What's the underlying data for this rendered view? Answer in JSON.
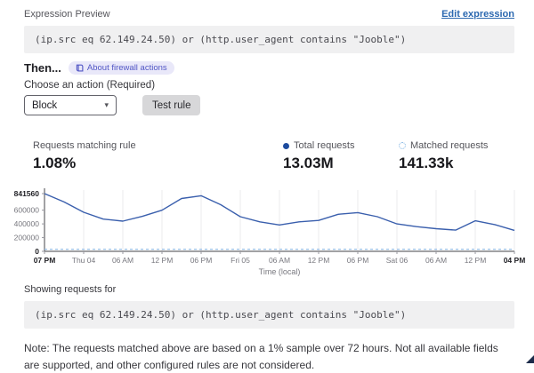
{
  "header": {
    "title": "Expression Preview",
    "edit_link": "Edit expression"
  },
  "expression": "(ip.src eq 62.149.24.50) or (http.user_agent contains \"Jooble\")",
  "then": {
    "label": "Then...",
    "badge": "About firewall actions"
  },
  "action": {
    "label": "Choose an action (Required)",
    "selected": "Block",
    "test_button": "Test rule"
  },
  "stats": [
    {
      "label": "Requests matching rule",
      "value": "1.08%",
      "marker": "none"
    },
    {
      "label": "Total requests",
      "value": "13.03M",
      "marker": "solid-dot",
      "marker_color": "#1d4b9e"
    },
    {
      "label": "Matched requests",
      "value": "141.33k",
      "marker": "dashed-circle",
      "marker_color": "#7fb3e3"
    }
  ],
  "chart_data": {
    "type": "line",
    "x_ticks": [
      "07 PM",
      "Thu 04",
      "06 AM",
      "12 PM",
      "06 PM",
      "Fri 05",
      "06 AM",
      "12 PM",
      "06 PM",
      "Sat 06",
      "06 AM",
      "12 PM",
      "04 PM"
    ],
    "xlabel": "Time (local)",
    "y_ticks": [
      841560,
      600000,
      400000,
      200000,
      0
    ],
    "ylim": [
      0,
      841560
    ],
    "grid": "vertical",
    "legend_position": "above-chart-as-stats",
    "series": [
      {
        "name": "Total requests",
        "style": "solid",
        "color": "#3a5fad",
        "values": [
          841560,
          720000,
          570000,
          470000,
          440000,
          510000,
          600000,
          770000,
          810000,
          680000,
          505000,
          430000,
          385000,
          430000,
          450000,
          540000,
          565000,
          505000,
          400000,
          360000,
          330000,
          310000,
          445000,
          390000,
          305000
        ]
      },
      {
        "name": "Matched requests",
        "style": "dashed",
        "color": "#8fb9e6",
        "values": [
          30000,
          30000,
          30000,
          30000,
          30000,
          30000,
          30000,
          30000,
          30000,
          30000,
          30000,
          30000,
          30000,
          30000,
          30000,
          30000,
          30000,
          30000,
          30000,
          30000,
          30000,
          30000,
          30000,
          30000,
          30000
        ]
      }
    ]
  },
  "showing": {
    "label": "Showing requests for",
    "expression": "(ip.src eq 62.149.24.50) or (http.user_agent contains \"Jooble\")"
  },
  "note": "Note: The requests matched above are based on a 1% sample over 72 hours. Not all available fields are supported, and other configured rules are not considered.",
  "colors": {
    "link": "#2b68b0",
    "badge_bg": "#e9e8f9",
    "badge_text": "#5156c5",
    "axis": "#44444a",
    "gridline": "#ebebee"
  }
}
